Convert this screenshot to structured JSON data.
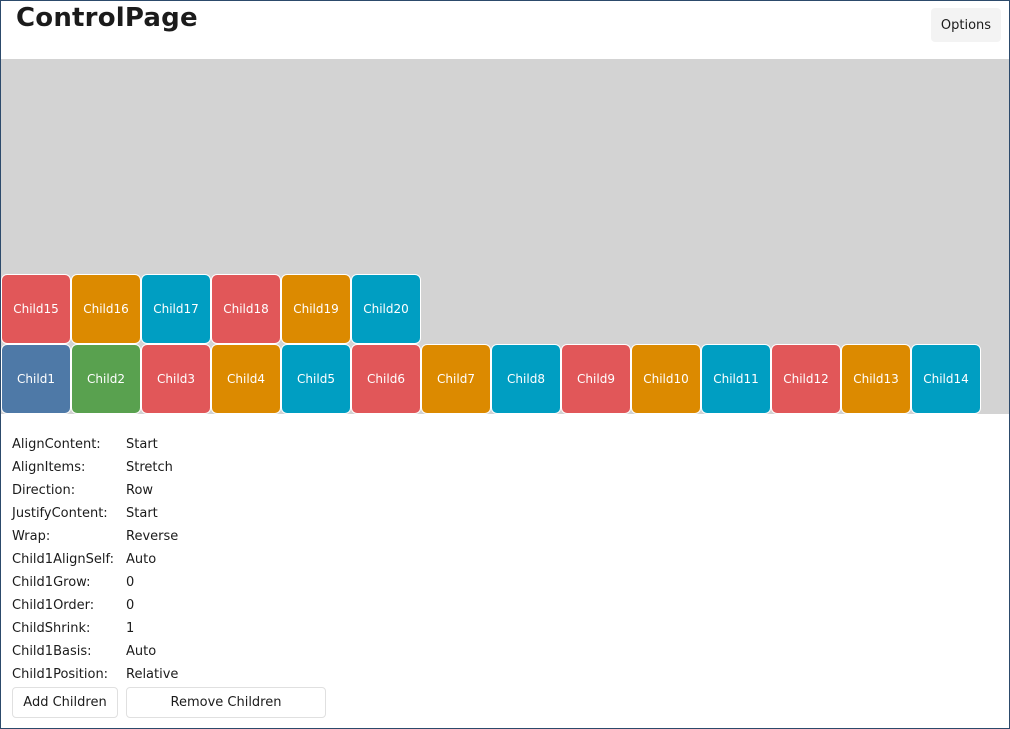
{
  "header": {
    "title": "ControlPage",
    "options_label": "Options"
  },
  "children": [
    {
      "label": "Child1",
      "color": "#4e79a7"
    },
    {
      "label": "Child2",
      "color": "#59a14f"
    },
    {
      "label": "Child3",
      "color": "#e15759"
    },
    {
      "label": "Child4",
      "color": "#dc8a00"
    },
    {
      "label": "Child5",
      "color": "#009ec2"
    },
    {
      "label": "Child6",
      "color": "#e15759"
    },
    {
      "label": "Child7",
      "color": "#dc8a00"
    },
    {
      "label": "Child8",
      "color": "#009ec2"
    },
    {
      "label": "Child9",
      "color": "#e15759"
    },
    {
      "label": "Child10",
      "color": "#dc8a00"
    },
    {
      "label": "Child11",
      "color": "#009ec2"
    },
    {
      "label": "Child12",
      "color": "#e15759"
    },
    {
      "label": "Child13",
      "color": "#dc8a00"
    },
    {
      "label": "Child14",
      "color": "#009ec2"
    },
    {
      "label": "Child15",
      "color": "#e15759"
    },
    {
      "label": "Child16",
      "color": "#dc8a00"
    },
    {
      "label": "Child17",
      "color": "#009ec2"
    },
    {
      "label": "Child18",
      "color": "#e15759"
    },
    {
      "label": "Child19",
      "color": "#dc8a00"
    },
    {
      "label": "Child20",
      "color": "#009ec2"
    }
  ],
  "properties": [
    {
      "label": "AlignContent:",
      "value": "Start"
    },
    {
      "label": "AlignItems:",
      "value": "Stretch"
    },
    {
      "label": "Direction:",
      "value": "Row"
    },
    {
      "label": "JustifyContent:",
      "value": "Start"
    },
    {
      "label": "Wrap:",
      "value": "Reverse"
    },
    {
      "label": "Child1AlignSelf:",
      "value": "Auto"
    },
    {
      "label": "Child1Grow:",
      "value": "0"
    },
    {
      "label": "Child1Order:",
      "value": "0"
    },
    {
      "label": "ChildShrink:",
      "value": "1"
    },
    {
      "label": "Child1Basis:",
      "value": "Auto"
    },
    {
      "label": "Child1Position:",
      "value": "Relative"
    }
  ],
  "actions": {
    "add_label": "Add Children",
    "remove_label": "Remove Children"
  }
}
